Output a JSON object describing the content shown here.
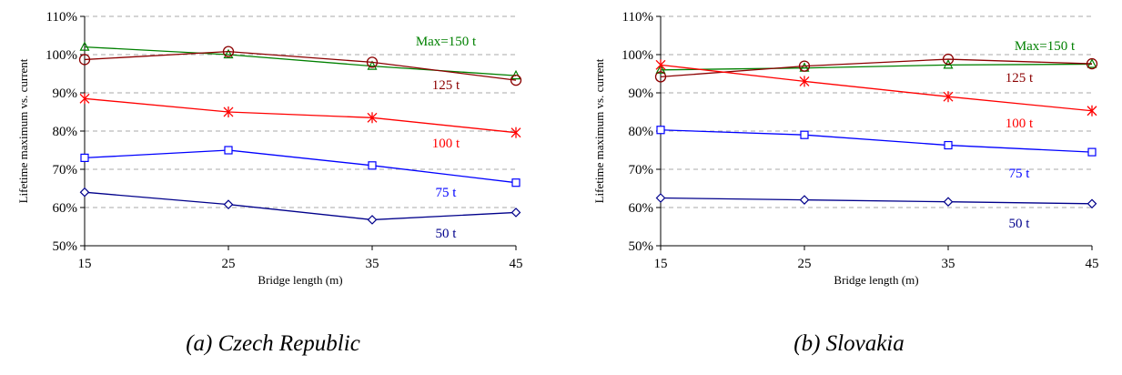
{
  "chart_data": [
    {
      "type": "line",
      "caption": "(a) Czech Republic",
      "xlabel": "Bridge length (m)",
      "ylabel": "Lifetime maximum vs. current",
      "x": [
        15,
        25,
        35,
        45
      ],
      "x_ticks": [
        "15",
        "25",
        "35",
        "45"
      ],
      "y_ticks": [
        "50%",
        "60%",
        "70%",
        "80%",
        "90%",
        "100%",
        "110%"
      ],
      "ylim": [
        50,
        110
      ],
      "grid": "horizontal dashed",
      "series": [
        {
          "name": "Max=150 t",
          "values": [
            102,
            100,
            97,
            94.5
          ],
          "color": "#008000",
          "marker": "triangle"
        },
        {
          "name": "125 t",
          "values": [
            98.7,
            100.8,
            98,
            93.3
          ],
          "color": "#8b0000",
          "marker": "circle"
        },
        {
          "name": "100 t",
          "values": [
            88.5,
            85,
            83.5,
            79.6
          ],
          "color": "#ff0000",
          "marker": "star"
        },
        {
          "name": "75 t",
          "values": [
            73,
            75,
            71,
            66.5
          ],
          "color": "#0000ff",
          "marker": "square"
        },
        {
          "name": "50 t",
          "values": [
            64,
            60.8,
            56.8,
            58.7
          ],
          "color": "#00008b",
          "marker": "diamond"
        }
      ]
    },
    {
      "type": "line",
      "caption": "(b) Slovakia",
      "xlabel": "Bridge length (m)",
      "ylabel": "Lifetime maximum vs. current",
      "x": [
        15,
        25,
        35,
        45
      ],
      "x_ticks": [
        "15",
        "25",
        "35",
        "45"
      ],
      "y_ticks": [
        "50%",
        "60%",
        "70%",
        "80%",
        "90%",
        "100%",
        "110%"
      ],
      "ylim": [
        50,
        110
      ],
      "grid": "horizontal dashed",
      "series": [
        {
          "name": "Max=150 t",
          "values": [
            96,
            96.5,
            97.3,
            97.5
          ],
          "color": "#008000",
          "marker": "triangle"
        },
        {
          "name": "125 t",
          "values": [
            94.2,
            97,
            98.8,
            97.6
          ],
          "color": "#8b0000",
          "marker": "circle"
        },
        {
          "name": "100 t",
          "values": [
            97.3,
            93,
            89,
            85.3
          ],
          "color": "#ff0000",
          "marker": "star"
        },
        {
          "name": "75 t",
          "values": [
            80.3,
            79,
            76.3,
            74.5
          ],
          "color": "#0000ff",
          "marker": "square"
        },
        {
          "name": "50 t",
          "values": [
            62.5,
            62,
            61.5,
            61
          ],
          "color": "#00008b",
          "marker": "diamond"
        }
      ]
    }
  ]
}
